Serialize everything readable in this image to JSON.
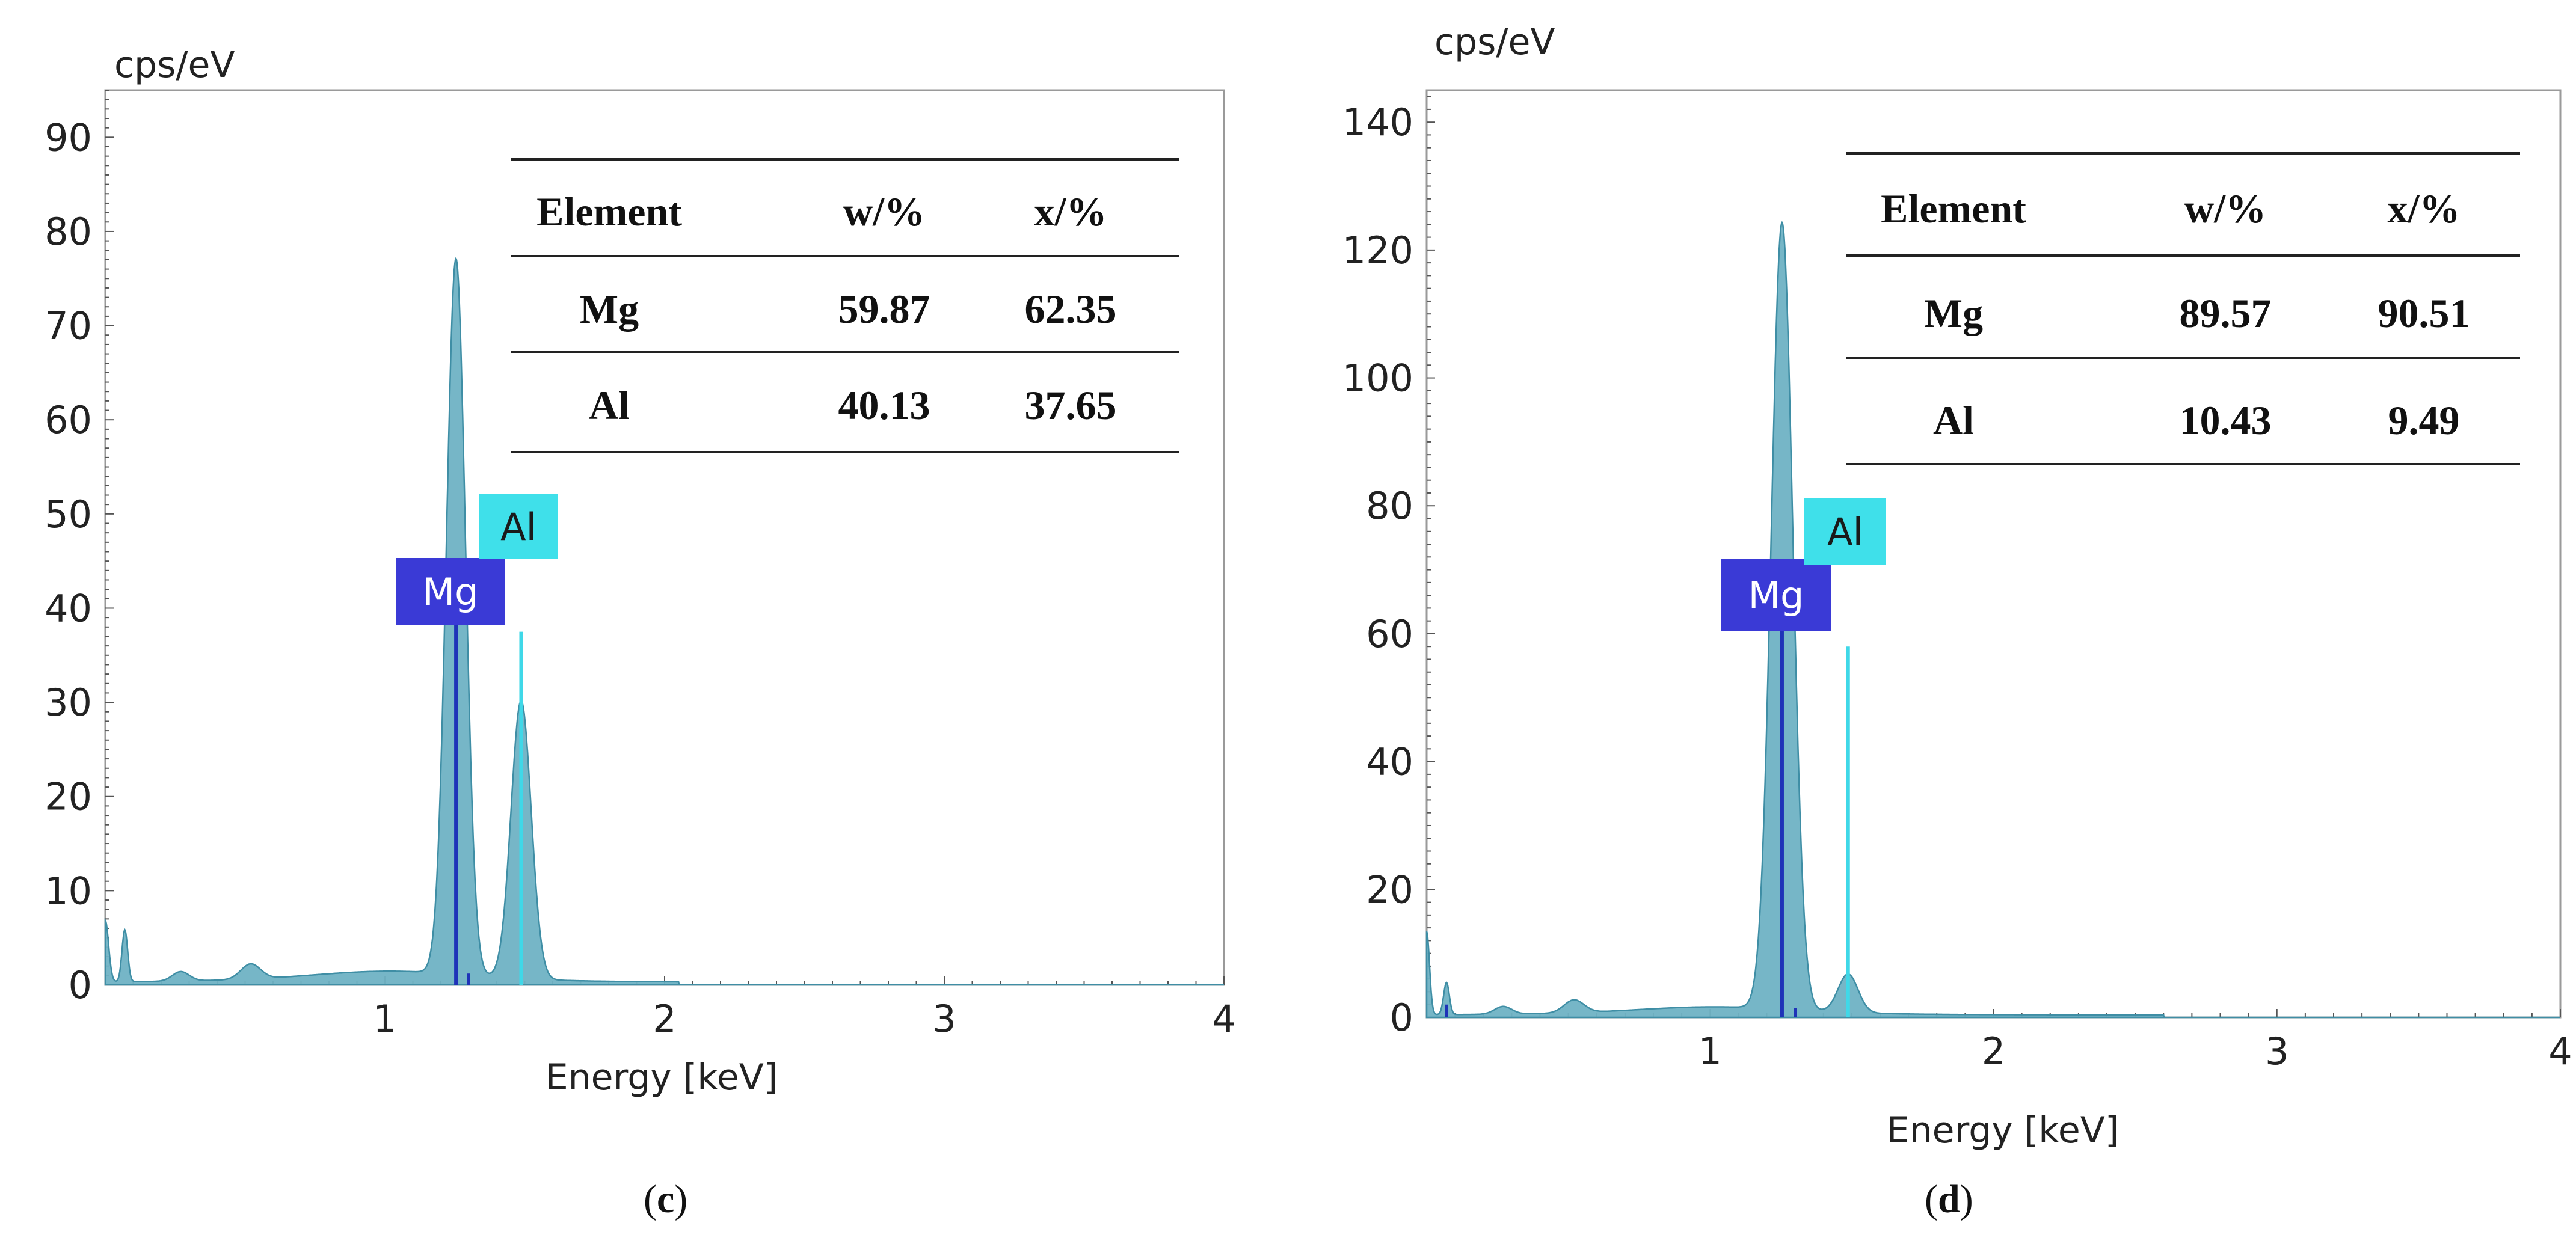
{
  "colors": {
    "spectrum_fill": "#6fb2c4",
    "spectrum_edge": "#3f8ea5",
    "mg_line": "#1f33b8",
    "al_line": "#3fd8e8",
    "mg_label_bg": "#3a3ad6",
    "al_label_bg": "#3fe0ea",
    "frame": "#9a9a9a",
    "text": "#222222"
  },
  "chart_data": [
    {
      "type": "area",
      "panel_caption": "(c)",
      "caption_letter": "c",
      "caption_open": "(",
      "caption_close": ")",
      "y_unit_label": "cps/eV",
      "xlabel": "Energy [keV]",
      "xlim": [
        0,
        4
      ],
      "ylim": [
        0,
        95
      ],
      "x_ticks": [
        1,
        2,
        3,
        4
      ],
      "x_tick_labels": [
        "1",
        "2",
        "3",
        "4"
      ],
      "y_ticks": [
        0,
        10,
        20,
        30,
        40,
        50,
        60,
        70,
        80,
        90
      ],
      "y_tick_labels": [
        "0",
        "10",
        "20",
        "30",
        "40",
        "50",
        "60",
        "70",
        "80",
        "90"
      ],
      "spectrum": {
        "baseline": 0.3,
        "peaks": [
          {
            "center": 0.0,
            "height": 6.5,
            "width": 0.012
          },
          {
            "center": 0.07,
            "height": 5.5,
            "width": 0.01
          },
          {
            "center": 0.27,
            "height": 1.0,
            "width": 0.03
          },
          {
            "center": 0.52,
            "height": 1.6,
            "width": 0.035
          },
          {
            "center": 1.02,
            "height": 0.7,
            "width": 0.25
          },
          {
            "center": 1.254,
            "height": 76,
            "width": 0.034
          },
          {
            "center": 1.487,
            "height": 29.5,
            "width": 0.036
          }
        ],
        "continuum_end": 2.05
      },
      "element_lines": [
        {
          "element": "Mg",
          "energy": 1.254,
          "height": 40
        },
        {
          "element": "Al",
          "energy": 1.487,
          "height": 37.5
        }
      ],
      "minor_marks": [
        {
          "element": "Mg",
          "energy": 1.3,
          "height": 1.2
        }
      ],
      "peak_labels": [
        {
          "text": "Mg",
          "element": "Mg"
        },
        {
          "text": "Al",
          "element": "Al"
        }
      ],
      "table": {
        "headers": [
          "Element",
          "w/%",
          "x/%"
        ],
        "rows": [
          [
            "Mg",
            "59.87",
            "62.35"
          ],
          [
            "Al",
            "40.13",
            "37.65"
          ]
        ]
      }
    },
    {
      "type": "area",
      "panel_caption": "(d)",
      "caption_letter": "d",
      "caption_open": "(",
      "caption_close": ")",
      "y_unit_label": "cps/eV",
      "xlabel": "Energy [keV]",
      "xlim": [
        0,
        4
      ],
      "ylim": [
        0,
        145
      ],
      "x_ticks": [
        1,
        2,
        3,
        4
      ],
      "x_tick_labels": [
        "1",
        "2",
        "3",
        "4"
      ],
      "y_ticks": [
        0,
        20,
        40,
        60,
        80,
        100,
        120,
        140
      ],
      "y_tick_labels": [
        "0",
        "20",
        "40",
        "60",
        "80",
        "100",
        "120",
        "140"
      ],
      "spectrum": {
        "baseline": 0.4,
        "peaks": [
          {
            "center": 0.0,
            "height": 13,
            "width": 0.01
          },
          {
            "center": 0.07,
            "height": 5,
            "width": 0.01
          },
          {
            "center": 0.27,
            "height": 1.2,
            "width": 0.03
          },
          {
            "center": 0.52,
            "height": 2.0,
            "width": 0.035
          },
          {
            "center": 1.02,
            "height": 0.8,
            "width": 0.25
          },
          {
            "center": 1.254,
            "height": 123,
            "width": 0.038
          },
          {
            "center": 1.487,
            "height": 6,
            "width": 0.035
          }
        ],
        "continuum_end": 2.6
      },
      "element_lines": [
        {
          "element": "Mg",
          "energy": 1.254,
          "height": 61
        },
        {
          "element": "Al",
          "energy": 1.487,
          "height": 58
        }
      ],
      "minor_marks": [
        {
          "element": "Mg",
          "energy": 0.07,
          "height": 2
        },
        {
          "element": "Mg",
          "energy": 1.3,
          "height": 1.5
        }
      ],
      "peak_labels": [
        {
          "text": "Mg",
          "element": "Mg"
        },
        {
          "text": "Al",
          "element": "Al"
        }
      ],
      "table": {
        "headers": [
          "Element",
          "w/%",
          "x/%"
        ],
        "rows": [
          [
            "Mg",
            "89.57",
            "90.51"
          ],
          [
            "Al",
            "10.43",
            "9.49"
          ]
        ]
      }
    }
  ]
}
